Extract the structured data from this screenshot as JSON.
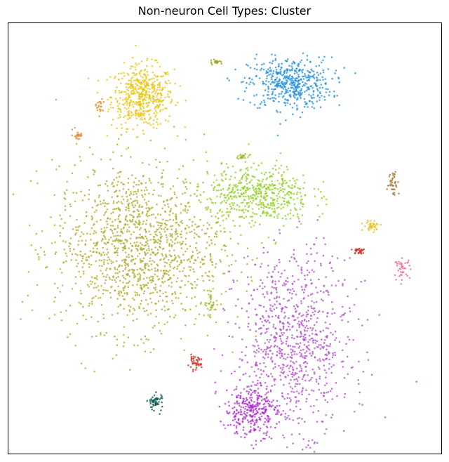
{
  "chart_data": {
    "type": "scatter",
    "title": "Non-neuron Cell Types: Cluster",
    "xlabel": "",
    "ylabel": "",
    "axes_ticks": "none",
    "grid": false,
    "legend": "none",
    "xlim": [
      0,
      100
    ],
    "ylim": [
      0,
      100
    ],
    "series": [
      {
        "color": "#e8c510",
        "shape": "blob",
        "center": [
          31,
          83
        ],
        "spread": [
          6,
          6
        ],
        "points": 520
      },
      {
        "color": "#1f8fe0",
        "center": [
          65,
          86
        ],
        "spread": [
          8,
          5
        ],
        "points": 500
      },
      {
        "color": "#b0a82a",
        "center": [
          30,
          48
        ],
        "spread": [
          16,
          16
        ],
        "points": 1400
      },
      {
        "color": "#8fd020",
        "center": [
          58,
          60
        ],
        "spread": [
          10,
          6
        ],
        "points": 520
      },
      {
        "color": "#b04fc8",
        "center": [
          66,
          26
        ],
        "spread": [
          11,
          17
        ],
        "points": 900
      },
      {
        "color": "#b02ad0",
        "center": [
          56,
          10
        ],
        "spread": [
          5,
          5
        ],
        "points": 300
      },
      {
        "color": "#c82a20",
        "center": [
          43,
          21
        ],
        "spread": [
          1.3,
          1.3
        ],
        "points": 40
      },
      {
        "color": "#005848",
        "center": [
          34,
          12
        ],
        "spread": [
          1.5,
          1.8
        ],
        "points": 50
      },
      {
        "color": "#f06888",
        "center": [
          91,
          43
        ],
        "spread": [
          1.5,
          1.8
        ],
        "points": 40
      },
      {
        "color": "#e8c020",
        "center": [
          84,
          53
        ],
        "spread": [
          1.6,
          1
        ],
        "points": 40
      },
      {
        "color": "#c83020",
        "center": [
          81,
          47
        ],
        "spread": [
          1.5,
          0.8
        ],
        "points": 30
      },
      {
        "color": "#a07838",
        "center": [
          89,
          63
        ],
        "spread": [
          1,
          2.4
        ],
        "points": 40
      },
      {
        "color": "#e09040",
        "center": [
          16,
          74
        ],
        "spread": [
          1,
          1
        ],
        "points": 25
      },
      {
        "color": "#e09020",
        "center": [
          21,
          81
        ],
        "spread": [
          0.8,
          1.3
        ],
        "points": 20
      },
      {
        "color": "#98a018",
        "center": [
          48,
          91
        ],
        "spread": [
          1.2,
          0.6
        ],
        "points": 20
      },
      {
        "color": "#a8b820",
        "center": [
          54,
          69
        ],
        "spread": [
          0.9,
          0.6
        ],
        "points": 20
      },
      {
        "color": "#a8b830",
        "center": [
          47,
          35
        ],
        "spread": [
          1.5,
          2
        ],
        "points": 40
      }
    ]
  }
}
